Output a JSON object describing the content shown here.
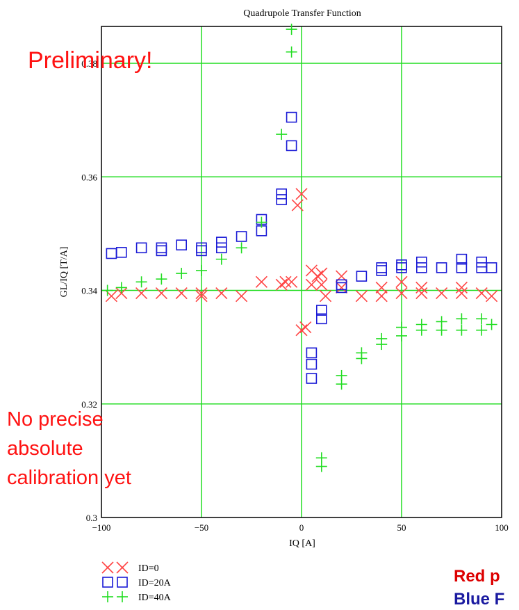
{
  "chart_data": {
    "type": "scatter",
    "title": "Quadrupole Transfer Function",
    "xlabel": "IQ [A]",
    "ylabel": "GL/IQ [T/A]",
    "xlim": [
      -100,
      100
    ],
    "ylim": [
      0.3,
      0.3865
    ],
    "grid": true,
    "grid_color": "#22dd22",
    "x_ticks": [
      -100,
      -50,
      0,
      50,
      100
    ],
    "x_tick_labels": [
      "−100",
      "−50",
      "0",
      "50",
      "100"
    ],
    "y_ticks": [
      0.3,
      0.32,
      0.34,
      0.36,
      0.38
    ],
    "y_tick_labels": [
      "0.3",
      "0.32",
      "0.34",
      "0.36",
      "0.38"
    ],
    "legend_placement": "bottom-left, below plot",
    "series": [
      {
        "name": "ID=0",
        "marker": "x",
        "color": "#ff4444",
        "points": [
          [
            -95,
            0.339
          ],
          [
            -90,
            0.3395
          ],
          [
            -80,
            0.3395
          ],
          [
            -70,
            0.3395
          ],
          [
            -60,
            0.3395
          ],
          [
            -50,
            0.339
          ],
          [
            -50,
            0.3395
          ],
          [
            -40,
            0.3395
          ],
          [
            -30,
            0.339
          ],
          [
            -20,
            0.3415
          ],
          [
            -10,
            0.341
          ],
          [
            -8,
            0.3415
          ],
          [
            -5,
            0.3415
          ],
          [
            -2,
            0.355
          ],
          [
            0,
            0.357
          ],
          [
            0,
            0.333
          ],
          [
            2,
            0.3335
          ],
          [
            5,
            0.3435
          ],
          [
            5,
            0.341
          ],
          [
            8,
            0.3425
          ],
          [
            10,
            0.343
          ],
          [
            10,
            0.341
          ],
          [
            12,
            0.339
          ],
          [
            20,
            0.3425
          ],
          [
            20,
            0.3405
          ],
          [
            30,
            0.339
          ],
          [
            40,
            0.3405
          ],
          [
            40,
            0.339
          ],
          [
            50,
            0.3415
          ],
          [
            50,
            0.3395
          ],
          [
            60,
            0.3405
          ],
          [
            60,
            0.3395
          ],
          [
            70,
            0.3395
          ],
          [
            80,
            0.3405
          ],
          [
            80,
            0.3395
          ],
          [
            90,
            0.3395
          ],
          [
            95,
            0.339
          ]
        ]
      },
      {
        "name": "ID=20A",
        "marker": "square",
        "color": "#1a1ad6",
        "points": [
          [
            -95,
            0.3465
          ],
          [
            -90,
            0.3467
          ],
          [
            -80,
            0.3475
          ],
          [
            -70,
            0.3475
          ],
          [
            -70,
            0.347
          ],
          [
            -60,
            0.348
          ],
          [
            -50,
            0.3475
          ],
          [
            -50,
            0.347
          ],
          [
            -40,
            0.3485
          ],
          [
            -40,
            0.3475
          ],
          [
            -30,
            0.3495
          ],
          [
            -20,
            0.3525
          ],
          [
            -20,
            0.3505
          ],
          [
            -10,
            0.357
          ],
          [
            -10,
            0.356
          ],
          [
            -5,
            0.3705
          ],
          [
            -5,
            0.3655
          ],
          [
            5,
            0.329
          ],
          [
            5,
            0.327
          ],
          [
            5,
            0.3245
          ],
          [
            10,
            0.3365
          ],
          [
            10,
            0.335
          ],
          [
            20,
            0.3405
          ],
          [
            20,
            0.341
          ],
          [
            30,
            0.3425
          ],
          [
            40,
            0.344
          ],
          [
            40,
            0.3435
          ],
          [
            50,
            0.3445
          ],
          [
            50,
            0.344
          ],
          [
            60,
            0.345
          ],
          [
            60,
            0.344
          ],
          [
            70,
            0.344
          ],
          [
            80,
            0.3455
          ],
          [
            80,
            0.344
          ],
          [
            90,
            0.345
          ],
          [
            90,
            0.344
          ],
          [
            95,
            0.344
          ]
        ]
      },
      {
        "name": "ID=40A",
        "marker": "plus",
        "color": "#22dd22",
        "points": [
          [
            -97,
            0.34
          ],
          [
            -90,
            0.3405
          ],
          [
            -80,
            0.3415
          ],
          [
            -70,
            0.342
          ],
          [
            -60,
            0.343
          ],
          [
            -50,
            0.3435
          ],
          [
            -40,
            0.3455
          ],
          [
            -30,
            0.3475
          ],
          [
            -20,
            0.352
          ],
          [
            -10,
            0.3675
          ],
          [
            -5,
            0.386
          ],
          [
            -5,
            0.382
          ],
          [
            10,
            0.3105
          ],
          [
            10,
            0.309
          ],
          [
            20,
            0.325
          ],
          [
            20,
            0.3235
          ],
          [
            30,
            0.329
          ],
          [
            30,
            0.328
          ],
          [
            40,
            0.3315
          ],
          [
            40,
            0.3305
          ],
          [
            50,
            0.3335
          ],
          [
            50,
            0.332
          ],
          [
            60,
            0.334
          ],
          [
            60,
            0.333
          ],
          [
            70,
            0.3345
          ],
          [
            70,
            0.333
          ],
          [
            80,
            0.335
          ],
          [
            80,
            0.333
          ],
          [
            90,
            0.335
          ],
          [
            90,
            0.333
          ],
          [
            95,
            0.334
          ]
        ]
      }
    ],
    "annotations": [
      {
        "text": "Preliminary!",
        "color": "#ff1111"
      },
      {
        "lines": [
          "No precise",
          "absolute",
          "calibration yet"
        ],
        "color": "#ff1111"
      }
    ],
    "footer_fragments": [
      {
        "text": "Red p",
        "color": "#dd0000"
      },
      {
        "text": "Blue F",
        "color": "#1a1aa0"
      }
    ]
  }
}
